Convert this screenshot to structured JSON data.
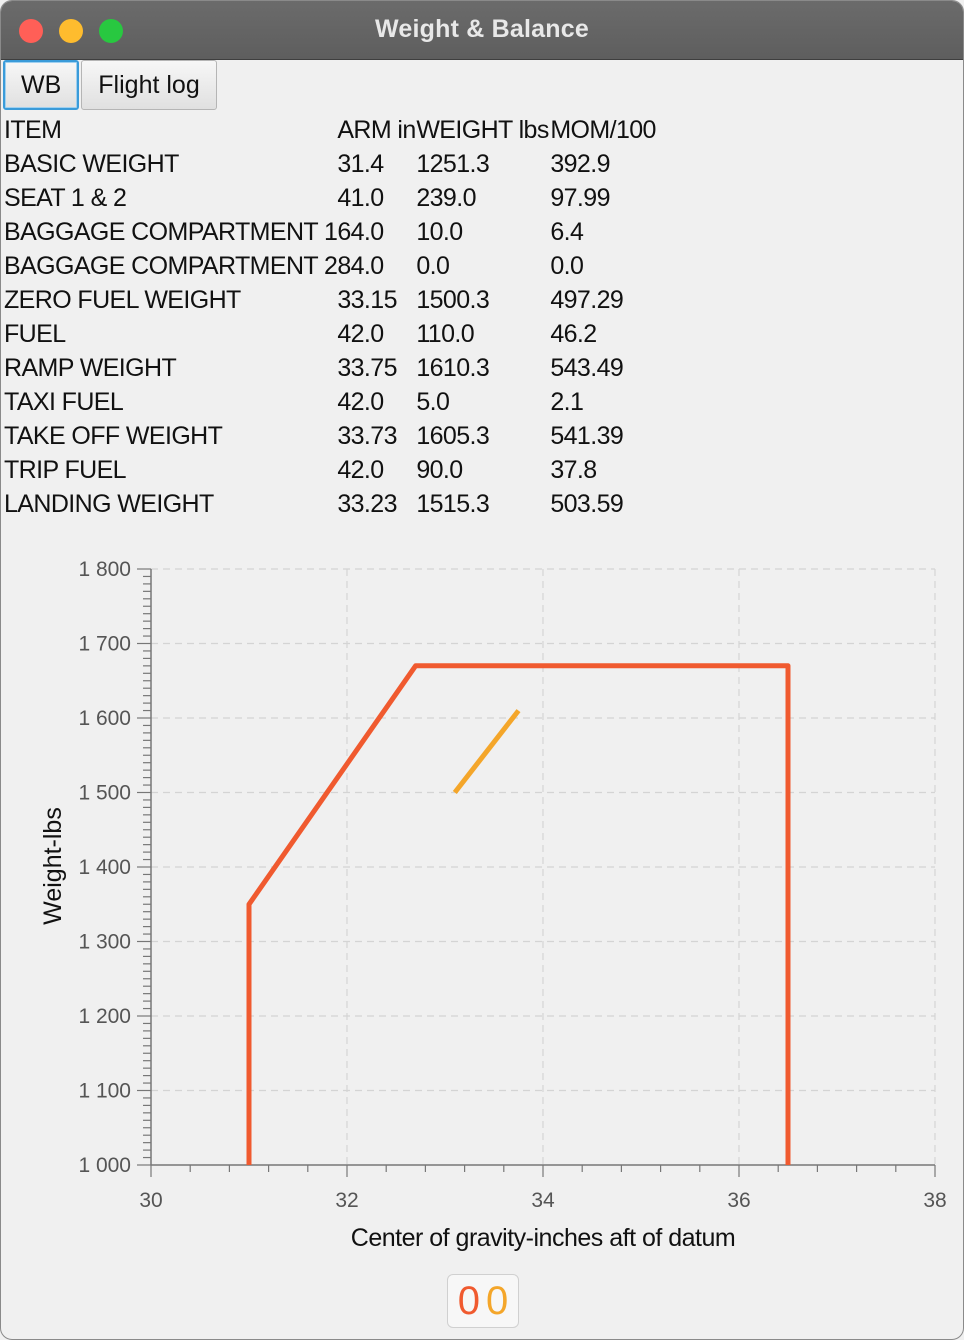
{
  "window": {
    "title": "Weight & Balance"
  },
  "tabs": [
    {
      "label": "WB",
      "selected": true
    },
    {
      "label": "Flight log",
      "selected": false
    }
  ],
  "table": {
    "headers": [
      "ITEM",
      "ARM in",
      "WEIGHT lbs",
      "MOM/100"
    ],
    "rows": [
      [
        "BASIC WEIGHT",
        "31.4",
        "1251.3",
        "392.9"
      ],
      [
        "SEAT 1 & 2",
        "41.0",
        "239.0",
        "97.99"
      ],
      [
        "BAGGAGE COMPARTMENT 1",
        "64.0",
        "10.0",
        "6.4"
      ],
      [
        "BAGGAGE COMPARTMENT 2",
        "84.0",
        "0.0",
        "0.0"
      ],
      [
        "ZERO FUEL WEIGHT",
        "33.15",
        "1500.3",
        "497.29"
      ],
      [
        "FUEL",
        "42.0",
        "110.0",
        "46.2"
      ],
      [
        "RAMP WEIGHT",
        "33.75",
        "1610.3",
        "543.49"
      ],
      [
        "TAXI FUEL",
        "42.0",
        "5.0",
        "2.1"
      ],
      [
        "TAKE OFF WEIGHT",
        "33.73",
        "1605.3",
        "541.39"
      ],
      [
        "TRIP FUEL",
        "42.0",
        "90.0",
        "37.8"
      ],
      [
        "LANDING WEIGHT",
        "33.23",
        "1515.3",
        "503.59"
      ]
    ]
  },
  "chart_data": {
    "type": "line",
    "title": "",
    "xlabel": "Center of gravity-inches aft of datum",
    "ylabel": "Weight-lbs",
    "xlim": [
      30,
      38
    ],
    "ylim": [
      1000,
      1800
    ],
    "xticks": [
      "30",
      "32",
      "34",
      "36",
      "38"
    ],
    "yticks": [
      "1 000",
      "1 100",
      "1 200",
      "1 300",
      "1 400",
      "1 500",
      "1 600",
      "1 700",
      "1 800"
    ],
    "grid": true,
    "legend": "none",
    "series": [
      {
        "color": "#f05a2f",
        "points": [
          [
            31.0,
            1000
          ],
          [
            31.0,
            1350
          ],
          [
            32.7,
            1670
          ],
          [
            36.5,
            1670
          ],
          [
            36.5,
            1000
          ]
        ]
      },
      {
        "color": "#f4a62a",
        "points": [
          [
            33.1,
            1500
          ],
          [
            33.75,
            1610
          ]
        ]
      }
    ]
  },
  "counter": {
    "digit1": "0",
    "digit2": "0",
    "color1": "#f05a2f",
    "color2": "#f4a62a"
  }
}
